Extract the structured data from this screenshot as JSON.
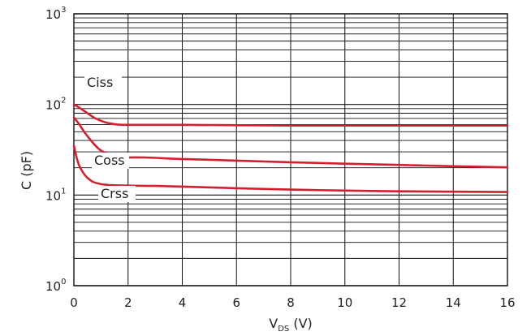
{
  "chart_data": {
    "type": "line",
    "x_axis": {
      "label_main": "V",
      "label_sub": "DS",
      "label_unit": " (V)",
      "range": [
        0,
        16
      ],
      "ticks": [
        0,
        2,
        4,
        6,
        8,
        10,
        12,
        14,
        16
      ],
      "tick_labels": [
        "0",
        "2",
        "4",
        "6",
        "8",
        "10",
        "12",
        "14",
        "16"
      ]
    },
    "y_axis": {
      "label": "C (pF)",
      "scale": "log",
      "range": [
        1,
        1000
      ],
      "major_ticks": [
        1,
        10,
        100,
        1000
      ],
      "tick_base": "10",
      "tick_exponents": [
        "0",
        "1",
        "2",
        "3"
      ]
    },
    "grid": true,
    "series": [
      {
        "name": "Ciss",
        "color": "#d3202e",
        "x": [
          0,
          0.2,
          0.5,
          0.8,
          1.2,
          1.6,
          2,
          3,
          4,
          6,
          8,
          10,
          12,
          14,
          16
        ],
        "y": [
          100,
          92,
          80,
          70,
          63,
          60,
          59.5,
          59.5,
          59.5,
          59,
          58.5,
          58.5,
          58.5,
          58.5,
          58.5
        ]
      },
      {
        "name": "Coss",
        "color": "#d3202e",
        "x": [
          0,
          0.2,
          0.4,
          0.6,
          0.8,
          1.0,
          1.3,
          1.6,
          2,
          2.6,
          4,
          6,
          8,
          10,
          12,
          14,
          16
        ],
        "y": [
          72,
          60,
          49,
          41,
          35,
          31,
          28,
          26.5,
          26,
          26,
          25,
          24,
          23,
          22.2,
          21.5,
          20.8,
          20.2
        ]
      },
      {
        "name": "Crss",
        "color": "#d3202e",
        "x": [
          0,
          0.1,
          0.2,
          0.35,
          0.5,
          0.7,
          1.0,
          1.3,
          1.6,
          2,
          3,
          4,
          6,
          8,
          10,
          12,
          14,
          16
        ],
        "y": [
          35,
          26,
          21,
          17.5,
          15.5,
          14,
          13.2,
          12.9,
          12.8,
          12.7,
          12.6,
          12.4,
          11.9,
          11.5,
          11.2,
          11.0,
          10.9,
          10.8
        ]
      }
    ]
  }
}
